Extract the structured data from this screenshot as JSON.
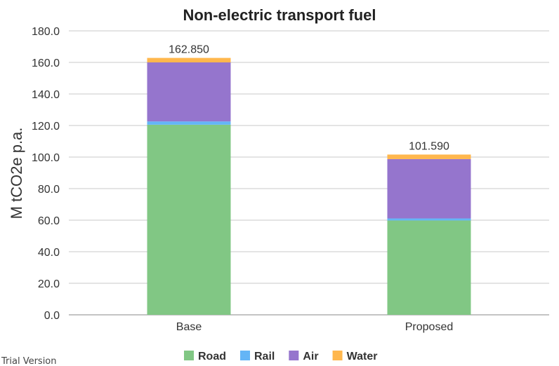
{
  "watermark": "Trial Version",
  "chart_data": {
    "type": "bar",
    "stacked": true,
    "title": "Non-electric transport fuel",
    "xlabel": "",
    "ylabel": "M tCO2e p.a.",
    "ylim": [
      0,
      180
    ],
    "yticks": [
      "0.0",
      "20.0",
      "40.0",
      "60.0",
      "80.0",
      "100.0",
      "120.0",
      "140.0",
      "160.0",
      "180.0"
    ],
    "grid": true,
    "legend_position": "bottom",
    "categories": [
      "Base",
      "Proposed"
    ],
    "totals": [
      "162.850",
      "101.590"
    ],
    "series": [
      {
        "name": "Road",
        "color": "#81c784",
        "values": [
          120.5,
          59.8
        ]
      },
      {
        "name": "Rail",
        "color": "#64b5f6",
        "values": [
          2.1,
          1.3
        ]
      },
      {
        "name": "Air",
        "color": "#9575cd",
        "values": [
          37.4,
          37.6
        ]
      },
      {
        "name": "Water",
        "color": "#ffb74d",
        "values": [
          2.85,
          2.89
        ]
      }
    ]
  }
}
